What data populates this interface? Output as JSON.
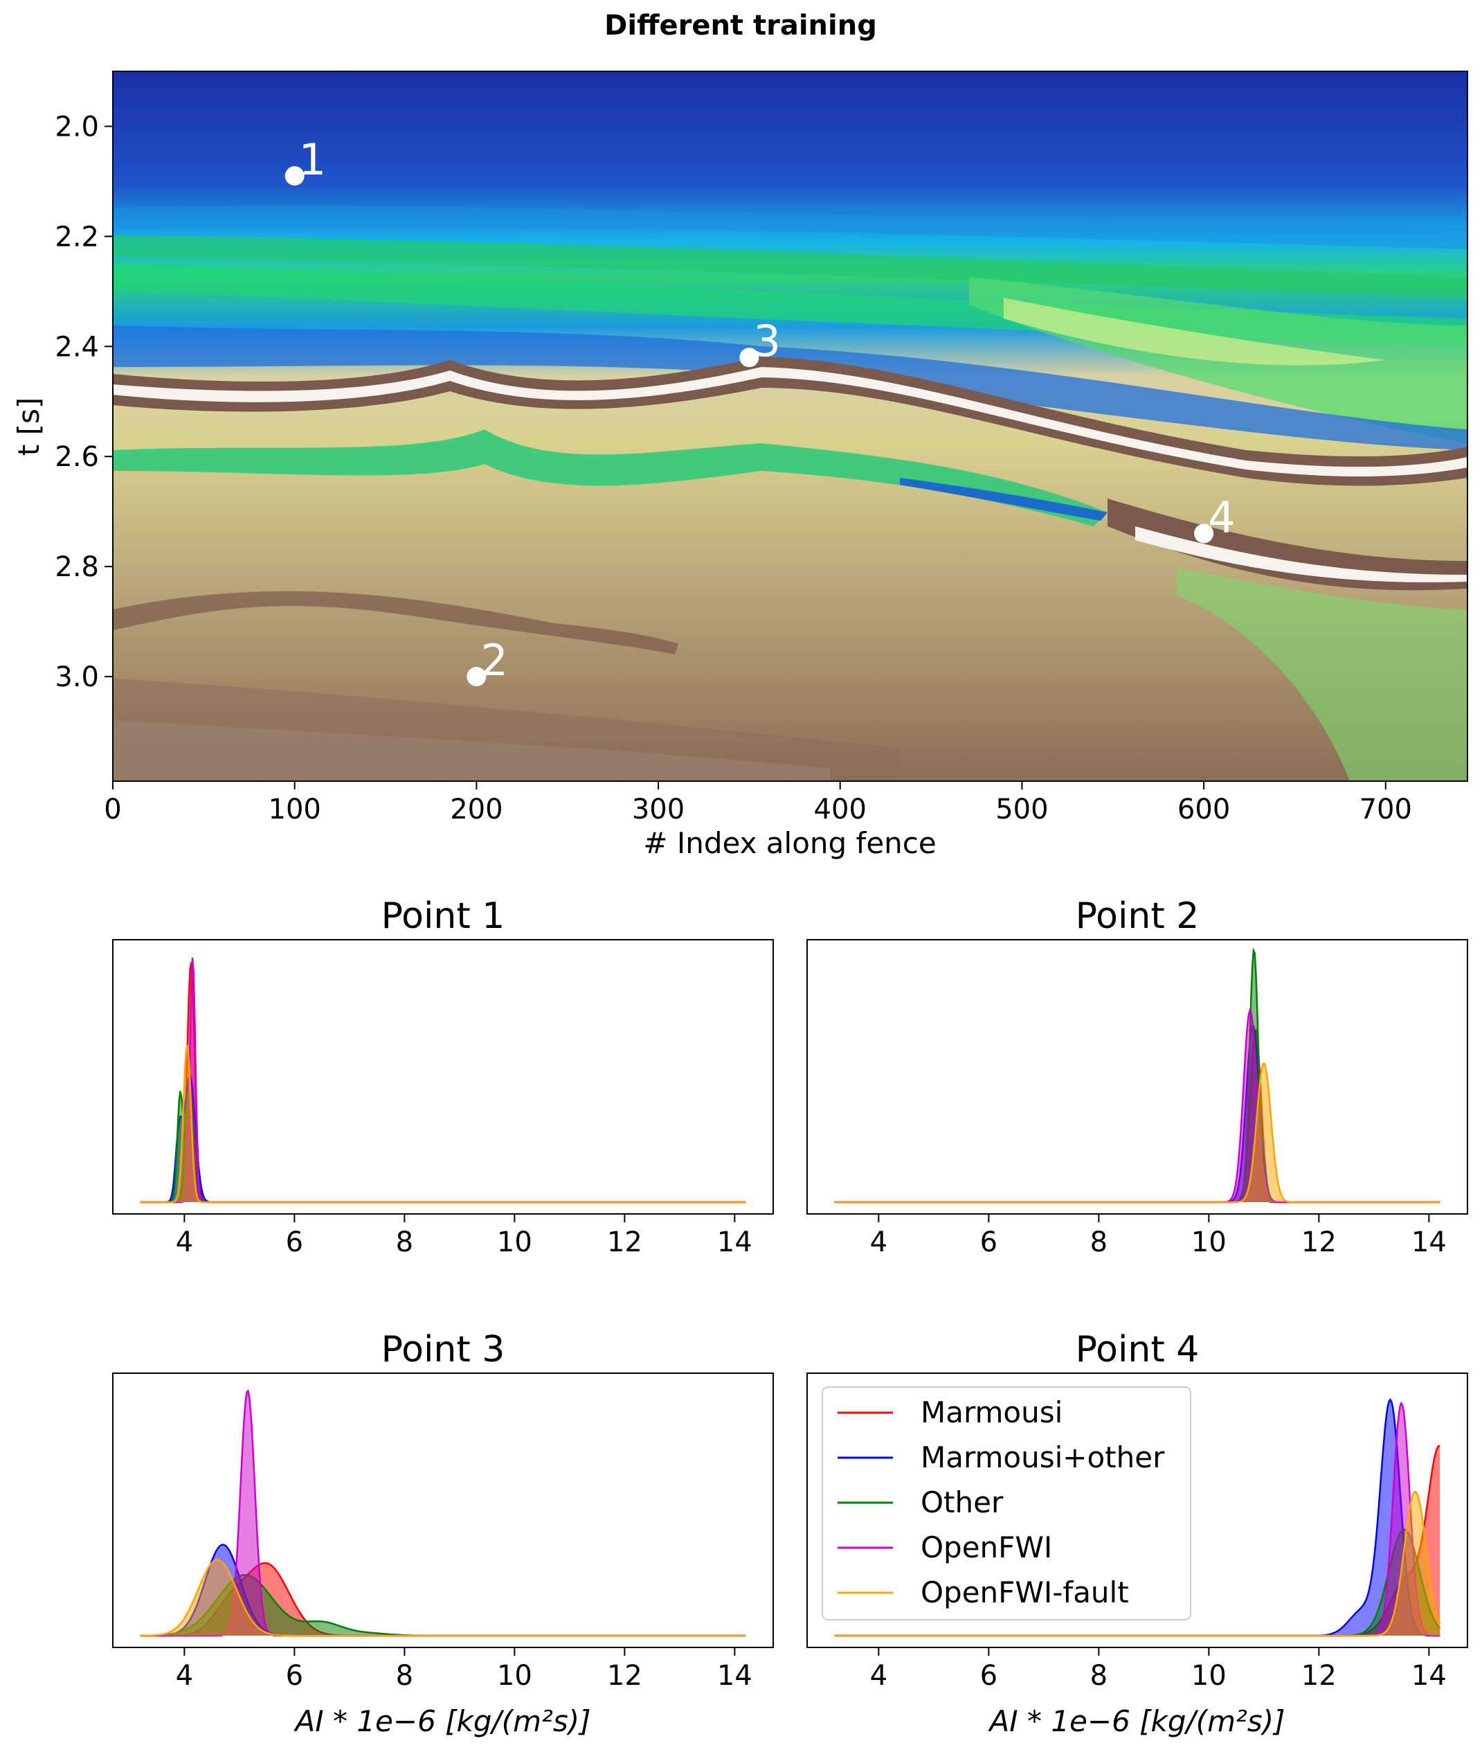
{
  "figure": {
    "suptitle": "Different training"
  },
  "section": {
    "xlabel": "# Index along fence",
    "ylabel": "t [s]",
    "xticks": [
      "0",
      "100",
      "200",
      "300",
      "400",
      "500",
      "600",
      "700"
    ],
    "yticks": [
      "2.0",
      "2.2",
      "2.4",
      "2.6",
      "2.8",
      "3.0"
    ],
    "markers": [
      {
        "label": "1",
        "index": 100,
        "t": 2.09
      },
      {
        "label": "2",
        "index": 200,
        "t": 3.0
      },
      {
        "label": "3",
        "index": 350,
        "t": 2.42
      },
      {
        "label": "4",
        "index": 600,
        "t": 2.74
      }
    ]
  },
  "panels": {
    "p1": {
      "title": "Point 1"
    },
    "p2": {
      "title": "Point 2"
    },
    "p3": {
      "title": "Point 3"
    },
    "p4": {
      "title": "Point 4"
    },
    "xticks": [
      "4",
      "6",
      "8",
      "10",
      "12",
      "14"
    ],
    "xlabel": "AI * 1e−6 [kg/(m²s)]"
  },
  "legend": {
    "items": [
      {
        "name": "Marmousi",
        "color": "#ff0000"
      },
      {
        "name": "Marmousi+other",
        "color": "#0000ff"
      },
      {
        "name": "Other",
        "color": "#008000"
      },
      {
        "name": "OpenFWI",
        "color": "#cc00cc"
      },
      {
        "name": "OpenFWI-fault",
        "color": "#ffa500"
      }
    ]
  },
  "chart_data": [
    {
      "type": "heatmap",
      "title": "",
      "xlabel": "# Index along fence",
      "ylabel": "t [s]",
      "xlim": [
        0,
        745
      ],
      "ylim": [
        3.19,
        1.9
      ],
      "colormap": "terrain",
      "annotations": [
        {
          "label": "1",
          "x": 100,
          "y": 2.09
        },
        {
          "label": "2",
          "x": 200,
          "y": 3.0
        },
        {
          "label": "3",
          "x": 350,
          "y": 2.42
        },
        {
          "label": "4",
          "x": 600,
          "y": 2.74
        }
      ]
    },
    {
      "type": "area",
      "title": "Point 1",
      "xlim": [
        2.7,
        14.7
      ],
      "xticks": [
        4,
        6,
        8,
        10,
        12,
        14
      ],
      "series": [
        {
          "name": "Marmousi",
          "color": "#ff0000",
          "peaks": [
            {
              "mu": 4.12,
              "sigma": 0.07,
              "h": 0.95
            }
          ]
        },
        {
          "name": "Marmousi+other",
          "color": "#0000ff",
          "peaks": [
            {
              "mu": 4.1,
              "sigma": 0.1,
              "h": 0.5
            },
            {
              "mu": 3.9,
              "sigma": 0.06,
              "h": 0.25
            }
          ]
        },
        {
          "name": "Other",
          "color": "#008000",
          "peaks": [
            {
              "mu": 4.1,
              "sigma": 0.08,
              "h": 0.45
            },
            {
              "mu": 3.92,
              "sigma": 0.05,
              "h": 0.4
            }
          ]
        },
        {
          "name": "OpenFWI",
          "color": "#cc00cc",
          "peaks": [
            {
              "mu": 4.15,
              "sigma": 0.05,
              "h": 0.97
            }
          ]
        },
        {
          "name": "OpenFWI-fault",
          "color": "#ffa500",
          "peaks": [
            {
              "mu": 4.05,
              "sigma": 0.07,
              "h": 0.62
            }
          ]
        }
      ]
    },
    {
      "type": "area",
      "title": "Point 2",
      "xlim": [
        2.7,
        14.7
      ],
      "xticks": [
        4,
        6,
        8,
        10,
        12,
        14
      ],
      "series": [
        {
          "name": "Marmousi",
          "color": "#ff0000",
          "peaks": [
            {
              "mu": 10.85,
              "sigma": 0.1,
              "h": 0.68
            }
          ]
        },
        {
          "name": "Marmousi+other",
          "color": "#0000ff",
          "peaks": [
            {
              "mu": 10.8,
              "sigma": 0.12,
              "h": 0.7
            }
          ]
        },
        {
          "name": "Other",
          "color": "#008000",
          "peaks": [
            {
              "mu": 10.82,
              "sigma": 0.08,
              "h": 1.0
            }
          ]
        },
        {
          "name": "OpenFWI",
          "color": "#cc00cc",
          "peaks": [
            {
              "mu": 10.75,
              "sigma": 0.12,
              "h": 0.76
            }
          ]
        },
        {
          "name": "OpenFWI-fault",
          "color": "#ffa500",
          "peaks": [
            {
              "mu": 11.0,
              "sigma": 0.13,
              "h": 0.55
            }
          ]
        }
      ]
    },
    {
      "type": "area",
      "title": "Point 3",
      "xlabel": "AI * 1e−6 [kg/(m²s)]",
      "xlim": [
        2.7,
        14.7
      ],
      "xticks": [
        4,
        6,
        8,
        10,
        12,
        14
      ],
      "series": [
        {
          "name": "Marmousi",
          "color": "#ff0000",
          "peaks": [
            {
              "mu": 5.5,
              "sigma": 0.4,
              "h": 0.28
            },
            {
              "mu": 4.8,
              "sigma": 0.3,
              "h": 0.1
            }
          ]
        },
        {
          "name": "Marmousi+other",
          "color": "#0000ff",
          "peaks": [
            {
              "mu": 4.7,
              "sigma": 0.32,
              "h": 0.36
            }
          ]
        },
        {
          "name": "Other",
          "color": "#008000",
          "peaks": [
            {
              "mu": 5.1,
              "sigma": 0.5,
              "h": 0.24
            },
            {
              "mu": 6.5,
              "sigma": 0.35,
              "h": 0.05
            },
            {
              "mu": 7.3,
              "sigma": 0.4,
              "h": 0.01
            }
          ]
        },
        {
          "name": "OpenFWI",
          "color": "#cc00cc",
          "peaks": [
            {
              "mu": 5.15,
              "sigma": 0.13,
              "h": 0.97
            }
          ]
        },
        {
          "name": "OpenFWI-fault",
          "color": "#ffa500",
          "peaks": [
            {
              "mu": 4.6,
              "sigma": 0.35,
              "h": 0.3
            }
          ]
        }
      ]
    },
    {
      "type": "area",
      "title": "Point 4",
      "xlabel": "AI * 1e−6 [kg/(m²s)]",
      "xlim": [
        2.7,
        14.7
      ],
      "xticks": [
        4,
        6,
        8,
        10,
        12,
        14
      ],
      "series": [
        {
          "name": "Marmousi",
          "color": "#ff0000",
          "peaks": [
            {
              "mu": 14.2,
              "sigma": 0.22,
              "h": 0.72
            },
            {
              "mu": 13.6,
              "sigma": 0.3,
              "h": 0.22
            }
          ]
        },
        {
          "name": "Marmousi+other",
          "color": "#0000ff",
          "peaks": [
            {
              "mu": 13.3,
              "sigma": 0.18,
              "h": 0.92
            },
            {
              "mu": 12.8,
              "sigma": 0.25,
              "h": 0.1
            }
          ]
        },
        {
          "name": "Other",
          "color": "#008000",
          "peaks": [
            {
              "mu": 13.55,
              "sigma": 0.28,
              "h": 0.42
            }
          ]
        },
        {
          "name": "OpenFWI",
          "color": "#cc00cc",
          "peaks": [
            {
              "mu": 13.5,
              "sigma": 0.15,
              "h": 0.92
            }
          ]
        },
        {
          "name": "OpenFWI-fault",
          "color": "#ffa500",
          "peaks": [
            {
              "mu": 13.75,
              "sigma": 0.2,
              "h": 0.57
            }
          ]
        }
      ]
    }
  ]
}
